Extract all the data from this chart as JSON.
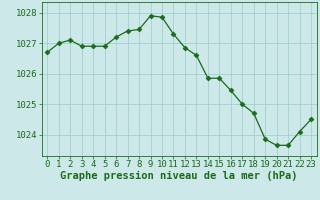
{
  "x": [
    0,
    1,
    2,
    3,
    4,
    5,
    6,
    7,
    8,
    9,
    10,
    11,
    12,
    13,
    14,
    15,
    16,
    17,
    18,
    19,
    20,
    21,
    22,
    23
  ],
  "y": [
    1026.7,
    1027.0,
    1027.1,
    1026.9,
    1026.9,
    1026.9,
    1027.2,
    1027.4,
    1027.45,
    1027.9,
    1027.85,
    1027.3,
    1026.85,
    1026.6,
    1025.85,
    1025.85,
    1025.45,
    1025.0,
    1024.7,
    1023.85,
    1023.65,
    1023.65,
    1024.1,
    1024.5
  ],
  "line_color": "#1a6b1a",
  "marker": "D",
  "marker_size": 2.5,
  "bg_color": "#cce8e8",
  "grid_color": "#99cccc",
  "xlabel": "Graphe pression niveau de la mer (hPa)",
  "xlabel_color": "#1a6b1a",
  "xlabel_fontsize": 7.5,
  "yticks": [
    1024,
    1025,
    1026,
    1027,
    1028
  ],
  "ylim": [
    1023.3,
    1028.35
  ],
  "xlim": [
    -0.5,
    23.5
  ],
  "tick_label_color": "#1a6b1a",
  "tick_fontsize": 6.5,
  "spine_color": "#1a6b1a"
}
